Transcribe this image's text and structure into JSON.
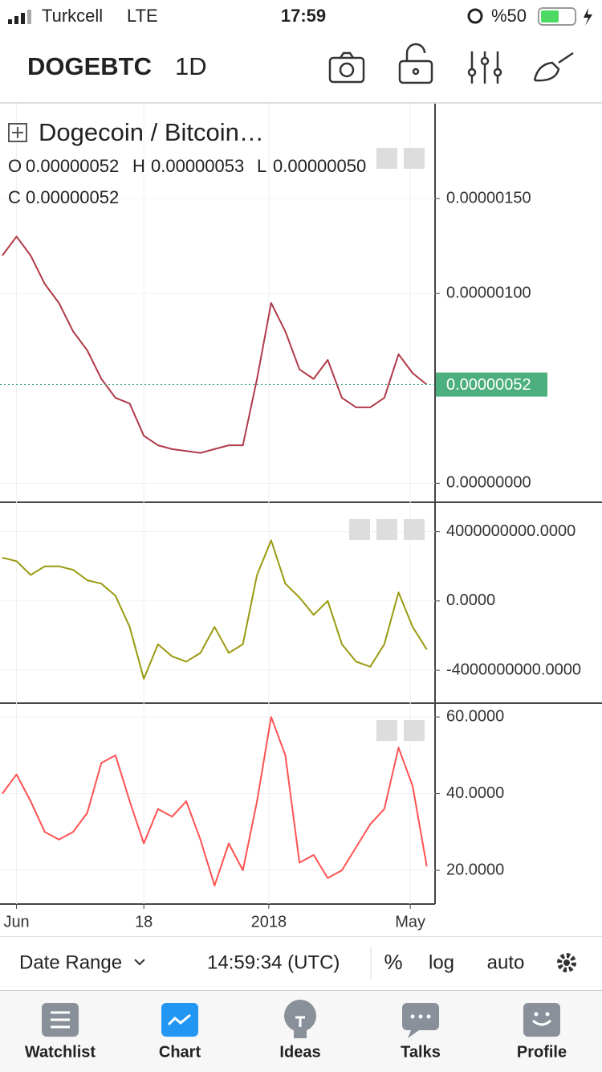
{
  "status_bar": {
    "carrier": "Turkcell",
    "network": "LTE",
    "time": "17:59",
    "battery": "%50"
  },
  "header": {
    "symbol": "DOGEBTC",
    "interval": "1D"
  },
  "ohlc": [
    {
      "label": "O",
      "value": "0.00000052"
    },
    {
      "label": "H",
      "value": "0.00000053"
    },
    {
      "label": "L",
      "value": "0.00000050"
    },
    {
      "label": "C",
      "value": "0.00000052"
    }
  ],
  "chart_data": [
    {
      "type": "line",
      "title": "Dogecoin / Bitcoin…",
      "x": [
        -12,
        0,
        12,
        24,
        36,
        48,
        60,
        72,
        84,
        96,
        108,
        120,
        132,
        144,
        156,
        168,
        180,
        192,
        204,
        216,
        228,
        240,
        252,
        264,
        276,
        288,
        300,
        312,
        324,
        336,
        348
      ],
      "xlim": [
        -14,
        355
      ],
      "series": [
        {
          "color": "#b03a48",
          "values": [
            1.2e-06,
            1.3e-06,
            1.2e-06,
            1.05e-06,
            9.5e-07,
            8e-07,
            7e-07,
            5.5e-07,
            4.5e-07,
            4.2e-07,
            2.5e-07,
            2e-07,
            1.8e-07,
            1.7e-07,
            1.6e-07,
            1.8e-07,
            2e-07,
            2e-07,
            5.5e-07,
            9.5e-07,
            8e-07,
            6e-07,
            5.5e-07,
            6.5e-07,
            4.5e-07,
            4e-07,
            4e-07,
            4.5e-07,
            6.8e-07,
            5.8e-07,
            5.2e-07
          ]
        }
      ],
      "ylim": [
        -1e-07,
        2e-06
      ],
      "yticks": [
        {
          "value": 0,
          "label": "0.00000000"
        },
        {
          "value": 1e-06,
          "label": "0.00000100"
        },
        {
          "value": 1.5e-06,
          "label": "0.00000150"
        }
      ],
      "last_price": {
        "value": 5.2e-07,
        "label": "0.00000052"
      },
      "grid": true
    },
    {
      "type": "line",
      "x": [
        -12,
        0,
        12,
        24,
        36,
        48,
        60,
        72,
        84,
        96,
        108,
        120,
        132,
        144,
        156,
        168,
        180,
        192,
        204,
        216,
        228,
        240,
        252,
        264,
        276,
        288,
        300,
        312,
        324,
        336,
        348
      ],
      "xlim": [
        -14,
        355
      ],
      "series": [
        {
          "color": "#9a9a10",
          "values": [
            2500000000.0,
            2300000000.0,
            1500000000.0,
            2000000000.0,
            2000000000.0,
            1800000000.0,
            1200000000.0,
            1000000000.0,
            300000000.0,
            -1500000000.0,
            -4500000000.0,
            -2500000000.0,
            -3200000000.0,
            -3500000000.0,
            -3000000000.0,
            -1500000000.0,
            -3000000000.0,
            -2500000000.0,
            1500000000.0,
            3500000000.0,
            1000000000.0,
            200000000.0,
            -800000000.0,
            0.0,
            -2500000000.0,
            -3500000000.0,
            -3800000000.0,
            -2500000000.0,
            500000000.0,
            -1500000000.0,
            -2800000000.0
          ]
        }
      ],
      "ylim": [
        -5900000000.0,
        5700000000.0
      ],
      "yticks": [
        {
          "value": -4000000000,
          "label": "-4000000000.0000"
        },
        {
          "value": 0,
          "label": "0.0000"
        },
        {
          "value": 4000000000,
          "label": "4000000000.0000"
        }
      ],
      "grid": true
    },
    {
      "type": "line",
      "x": [
        -12,
        0,
        12,
        24,
        36,
        48,
        60,
        72,
        84,
        96,
        108,
        120,
        132,
        144,
        156,
        168,
        180,
        192,
        204,
        216,
        228,
        240,
        252,
        264,
        276,
        288,
        300,
        312,
        324,
        336,
        348
      ],
      "xlim": [
        -14,
        355
      ],
      "series": [
        {
          "color": "#ff5252",
          "values": [
            40,
            45,
            38,
            30,
            28,
            30,
            35,
            48,
            50,
            38,
            27,
            36,
            34,
            38,
            28,
            16,
            27,
            20,
            38,
            60,
            50,
            22,
            24,
            18,
            20,
            26,
            32,
            36,
            52,
            42,
            21
          ]
        }
      ],
      "ylim": [
        11.2,
        63.6
      ],
      "yticks": [
        {
          "value": 20,
          "label": "20.0000"
        },
        {
          "value": 40,
          "label": "40.0000"
        },
        {
          "value": 60,
          "label": "60.0000"
        }
      ],
      "xticks": [
        {
          "value": 0,
          "label": "Jun"
        },
        {
          "value": 108,
          "label": "18"
        },
        {
          "value": 214,
          "label": "2018"
        },
        {
          "value": 334,
          "label": "May"
        }
      ],
      "grid": true
    }
  ],
  "toolbar": {
    "date_range": "Date Range",
    "time": "14:59:34 (UTC)",
    "percent": "%",
    "log": "log",
    "auto": "auto"
  },
  "tabs": [
    "Watchlist",
    "Chart",
    "Ideas",
    "Talks",
    "Profile"
  ]
}
